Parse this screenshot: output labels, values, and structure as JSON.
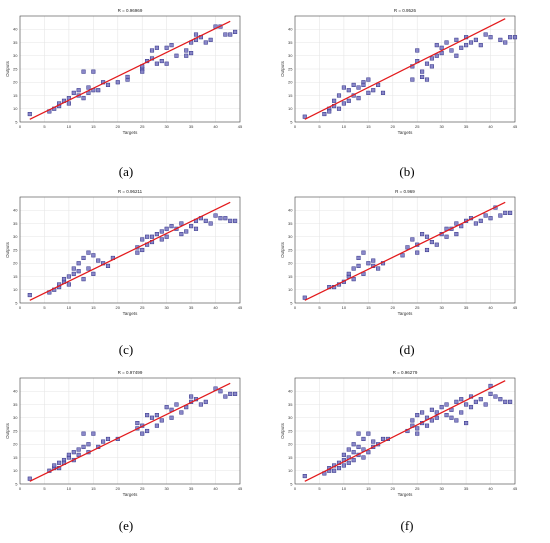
{
  "figure": {
    "captions": [
      "(a)",
      "(b)",
      "(c)",
      "(d)",
      "(e)",
      "(f)"
    ]
  },
  "colors": {
    "fit_line": "#e31a1c",
    "marker_fill": "#7c7ac2",
    "marker_edge": "#2e2e86",
    "grid": "#e6e6e6",
    "axis": "#444444"
  },
  "chart_data": [
    {
      "type": "scatter",
      "title": "R = 0.96969",
      "xlabel": "Targets",
      "ylabel": "Outputs",
      "xlim": [
        0,
        45
      ],
      "ylim": [
        5,
        45
      ],
      "xticks": [
        0,
        5,
        10,
        15,
        20,
        25,
        30,
        35,
        40,
        45
      ],
      "yticks": [
        5,
        10,
        15,
        20,
        25,
        30,
        35,
        40
      ],
      "grid": true,
      "fit_line": {
        "x": [
          2,
          43
        ],
        "y": [
          6,
          43
        ]
      },
      "points": [
        [
          2,
          8
        ],
        [
          6,
          9
        ],
        [
          7,
          10
        ],
        [
          8,
          11
        ],
        [
          8,
          12
        ],
        [
          9,
          13
        ],
        [
          10,
          14
        ],
        [
          10,
          12
        ],
        [
          11,
          16
        ],
        [
          12,
          15
        ],
        [
          12,
          17
        ],
        [
          13,
          14
        ],
        [
          13,
          24
        ],
        [
          14,
          18
        ],
        [
          14,
          16
        ],
        [
          15,
          24
        ],
        [
          15,
          17
        ],
        [
          16,
          17
        ],
        [
          17,
          20
        ],
        [
          18,
          19
        ],
        [
          20,
          20
        ],
        [
          22,
          21
        ],
        [
          22,
          22
        ],
        [
          25,
          25
        ],
        [
          25,
          26
        ],
        [
          25,
          24
        ],
        [
          26,
          28
        ],
        [
          27,
          29
        ],
        [
          27,
          32
        ],
        [
          28,
          33
        ],
        [
          28,
          27
        ],
        [
          29,
          28
        ],
        [
          30,
          27
        ],
        [
          30,
          33
        ],
        [
          31,
          34
        ],
        [
          32,
          30
        ],
        [
          34,
          30
        ],
        [
          34,
          32
        ],
        [
          35,
          31
        ],
        [
          35,
          35
        ],
        [
          36,
          36
        ],
        [
          36,
          38
        ],
        [
          37,
          37
        ],
        [
          38,
          35
        ],
        [
          39,
          36
        ],
        [
          40,
          41
        ],
        [
          41,
          41
        ],
        [
          42,
          38
        ],
        [
          43,
          38
        ],
        [
          44,
          39
        ]
      ]
    },
    {
      "type": "scatter",
      "title": "R = 0.9526",
      "xlabel": "Targets",
      "ylabel": "Outputs",
      "xlim": [
        0,
        45
      ],
      "ylim": [
        5,
        45
      ],
      "xticks": [
        0,
        5,
        10,
        15,
        20,
        25,
        30,
        35,
        40,
        45
      ],
      "yticks": [
        5,
        10,
        15,
        20,
        25,
        30,
        35,
        40
      ],
      "grid": true,
      "fit_line": {
        "x": [
          2,
          43
        ],
        "y": [
          6,
          44
        ]
      },
      "points": [
        [
          2,
          7
        ],
        [
          6,
          8
        ],
        [
          7,
          10
        ],
        [
          7,
          9
        ],
        [
          8,
          11
        ],
        [
          8,
          13
        ],
        [
          9,
          10
        ],
        [
          9,
          15
        ],
        [
          10,
          12
        ],
        [
          10,
          18
        ],
        [
          11,
          13
        ],
        [
          11,
          17
        ],
        [
          12,
          19
        ],
        [
          12,
          15
        ],
        [
          13,
          14
        ],
        [
          13,
          18
        ],
        [
          14,
          20
        ],
        [
          14,
          19
        ],
        [
          15,
          16
        ],
        [
          15,
          21
        ],
        [
          16,
          17
        ],
        [
          17,
          19
        ],
        [
          18,
          16
        ],
        [
          24,
          21
        ],
        [
          24,
          26
        ],
        [
          25,
          28
        ],
        [
          25,
          32
        ],
        [
          26,
          24
        ],
        [
          26,
          22
        ],
        [
          27,
          21
        ],
        [
          27,
          27
        ],
        [
          28,
          29
        ],
        [
          28,
          26
        ],
        [
          29,
          30
        ],
        [
          29,
          34
        ],
        [
          30,
          31
        ],
        [
          30,
          33
        ],
        [
          31,
          35
        ],
        [
          32,
          32
        ],
        [
          33,
          30
        ],
        [
          33,
          36
        ],
        [
          34,
          33
        ],
        [
          35,
          34
        ],
        [
          35,
          37
        ],
        [
          36,
          35
        ],
        [
          37,
          36
        ],
        [
          38,
          34
        ],
        [
          39,
          38
        ],
        [
          40,
          37
        ],
        [
          42,
          36
        ],
        [
          43,
          35
        ],
        [
          44,
          37
        ],
        [
          45,
          37
        ]
      ]
    },
    {
      "type": "scatter",
      "title": "R = 0.96211",
      "xlabel": "Targets",
      "ylabel": "Outputs",
      "xlim": [
        0,
        45
      ],
      "ylim": [
        5,
        45
      ],
      "xticks": [
        0,
        5,
        10,
        15,
        20,
        25,
        30,
        35,
        40,
        45
      ],
      "yticks": [
        5,
        10,
        15,
        20,
        25,
        30,
        35,
        40
      ],
      "grid": true,
      "fit_line": {
        "x": [
          2,
          43
        ],
        "y": [
          6,
          43
        ]
      },
      "points": [
        [
          2,
          8
        ],
        [
          6,
          9
        ],
        [
          7,
          10
        ],
        [
          8,
          11
        ],
        [
          8,
          12
        ],
        [
          9,
          13
        ],
        [
          9,
          14
        ],
        [
          10,
          15
        ],
        [
          10,
          12
        ],
        [
          11,
          16
        ],
        [
          11,
          18
        ],
        [
          12,
          17
        ],
        [
          12,
          20
        ],
        [
          13,
          14
        ],
        [
          13,
          22
        ],
        [
          14,
          24
        ],
        [
          14,
          18
        ],
        [
          15,
          23
        ],
        [
          15,
          16
        ],
        [
          16,
          21
        ],
        [
          17,
          20
        ],
        [
          18,
          19
        ],
        [
          19,
          22
        ],
        [
          24,
          24
        ],
        [
          24,
          26
        ],
        [
          25,
          25
        ],
        [
          25,
          29
        ],
        [
          26,
          30
        ],
        [
          26,
          27
        ],
        [
          27,
          28
        ],
        [
          27,
          30
        ],
        [
          28,
          31
        ],
        [
          29,
          32
        ],
        [
          29,
          29
        ],
        [
          30,
          30
        ],
        [
          30,
          33
        ],
        [
          31,
          34
        ],
        [
          32,
          33
        ],
        [
          33,
          31
        ],
        [
          33,
          35
        ],
        [
          34,
          32
        ],
        [
          35,
          34
        ],
        [
          36,
          36
        ],
        [
          36,
          33
        ],
        [
          37,
          37
        ],
        [
          38,
          36
        ],
        [
          39,
          35
        ],
        [
          40,
          38
        ],
        [
          41,
          37
        ],
        [
          42,
          37
        ],
        [
          43,
          36
        ],
        [
          44,
          36
        ]
      ]
    },
    {
      "type": "scatter",
      "title": "R = 0.969",
      "xlabel": "Targets",
      "ylabel": "Outputs",
      "xlim": [
        0,
        45
      ],
      "ylim": [
        5,
        45
      ],
      "xticks": [
        0,
        5,
        10,
        15,
        20,
        25,
        30,
        35,
        40,
        45
      ],
      "yticks": [
        5,
        10,
        15,
        20,
        25,
        30,
        35,
        40
      ],
      "grid": true,
      "fit_line": {
        "x": [
          2,
          43
        ],
        "y": [
          6,
          43
        ]
      },
      "points": [
        [
          2,
          7
        ],
        [
          7,
          11
        ],
        [
          8,
          11
        ],
        [
          9,
          12
        ],
        [
          10,
          13
        ],
        [
          11,
          15
        ],
        [
          11,
          16
        ],
        [
          12,
          14
        ],
        [
          12,
          18
        ],
        [
          13,
          19
        ],
        [
          13,
          22
        ],
        [
          14,
          16
        ],
        [
          14,
          24
        ],
        [
          15,
          20
        ],
        [
          16,
          19
        ],
        [
          16,
          21
        ],
        [
          17,
          18
        ],
        [
          18,
          20
        ],
        [
          22,
          23
        ],
        [
          23,
          26
        ],
        [
          24,
          29
        ],
        [
          25,
          24
        ],
        [
          25,
          27
        ],
        [
          26,
          31
        ],
        [
          27,
          30
        ],
        [
          27,
          25
        ],
        [
          28,
          28
        ],
        [
          29,
          27
        ],
        [
          30,
          31
        ],
        [
          31,
          30
        ],
        [
          31,
          33
        ],
        [
          32,
          33
        ],
        [
          33,
          31
        ],
        [
          33,
          35
        ],
        [
          34,
          34
        ],
        [
          35,
          36
        ],
        [
          36,
          37
        ],
        [
          37,
          35
        ],
        [
          38,
          36
        ],
        [
          39,
          38
        ],
        [
          40,
          37
        ],
        [
          41,
          41
        ],
        [
          42,
          38
        ],
        [
          43,
          39
        ],
        [
          44,
          39
        ]
      ]
    },
    {
      "type": "scatter",
      "title": "R = 0.97499",
      "xlabel": "Targets",
      "ylabel": "Outputs",
      "xlim": [
        0,
        45
      ],
      "ylim": [
        5,
        45
      ],
      "xticks": [
        0,
        5,
        10,
        15,
        20,
        25,
        30,
        35,
        40,
        45
      ],
      "yticks": [
        5,
        10,
        15,
        20,
        25,
        30,
        35,
        40
      ],
      "grid": true,
      "fit_line": {
        "x": [
          2,
          43
        ],
        "y": [
          6,
          43
        ]
      },
      "points": [
        [
          2,
          7
        ],
        [
          6,
          10
        ],
        [
          7,
          11
        ],
        [
          7,
          12
        ],
        [
          8,
          13
        ],
        [
          8,
          11
        ],
        [
          9,
          14
        ],
        [
          9,
          13
        ],
        [
          10,
          15
        ],
        [
          10,
          16
        ],
        [
          11,
          14
        ],
        [
          11,
          17
        ],
        [
          12,
          16
        ],
        [
          12,
          18
        ],
        [
          13,
          19
        ],
        [
          13,
          24
        ],
        [
          14,
          20
        ],
        [
          14,
          17
        ],
        [
          15,
          24
        ],
        [
          16,
          19
        ],
        [
          17,
          21
        ],
        [
          18,
          22
        ],
        [
          20,
          22
        ],
        [
          24,
          26
        ],
        [
          24,
          28
        ],
        [
          25,
          27
        ],
        [
          25,
          24
        ],
        [
          26,
          25
        ],
        [
          26,
          31
        ],
        [
          27,
          30
        ],
        [
          28,
          31
        ],
        [
          28,
          27
        ],
        [
          29,
          29
        ],
        [
          30,
          34
        ],
        [
          31,
          33
        ],
        [
          31,
          30
        ],
        [
          32,
          35
        ],
        [
          33,
          32
        ],
        [
          34,
          34
        ],
        [
          35,
          36
        ],
        [
          35,
          38
        ],
        [
          36,
          37
        ],
        [
          37,
          35
        ],
        [
          38,
          36
        ],
        [
          40,
          41
        ],
        [
          41,
          40
        ],
        [
          42,
          38
        ],
        [
          43,
          39
        ],
        [
          44,
          39
        ]
      ]
    },
    {
      "type": "scatter",
      "title": "R = 0.96279",
      "xlabel": "Targets",
      "ylabel": "Outputs",
      "xlim": [
        0,
        45
      ],
      "ylim": [
        5,
        45
      ],
      "xticks": [
        0,
        5,
        10,
        15,
        20,
        25,
        30,
        35,
        40,
        45
      ],
      "yticks": [
        5,
        10,
        15,
        20,
        25,
        30,
        35,
        40
      ],
      "grid": true,
      "fit_line": {
        "x": [
          2,
          43
        ],
        "y": [
          6,
          44
        ]
      },
      "points": [
        [
          2,
          8
        ],
        [
          6,
          9
        ],
        [
          7,
          10
        ],
        [
          7,
          11
        ],
        [
          8,
          10
        ],
        [
          8,
          12
        ],
        [
          9,
          11
        ],
        [
          9,
          13
        ],
        [
          10,
          12
        ],
        [
          10,
          14
        ],
        [
          10,
          16
        ],
        [
          11,
          13
        ],
        [
          11,
          15
        ],
        [
          11,
          18
        ],
        [
          12,
          14
        ],
        [
          12,
          17
        ],
        [
          12,
          20
        ],
        [
          13,
          16
        ],
        [
          13,
          19
        ],
        [
          13,
          24
        ],
        [
          14,
          15
        ],
        [
          14,
          18
        ],
        [
          14,
          22
        ],
        [
          15,
          24
        ],
        [
          15,
          17
        ],
        [
          16,
          19
        ],
        [
          16,
          21
        ],
        [
          17,
          20
        ],
        [
          18,
          22
        ],
        [
          19,
          22
        ],
        [
          23,
          25
        ],
        [
          24,
          27
        ],
        [
          24,
          29
        ],
        [
          25,
          31
        ],
        [
          25,
          26
        ],
        [
          25,
          24
        ],
        [
          26,
          28
        ],
        [
          26,
          32
        ],
        [
          27,
          30
        ],
        [
          27,
          27
        ],
        [
          28,
          29
        ],
        [
          28,
          33
        ],
        [
          29,
          30
        ],
        [
          29,
          32
        ],
        [
          30,
          34
        ],
        [
          31,
          31
        ],
        [
          31,
          35
        ],
        [
          32,
          33
        ],
        [
          32,
          30
        ],
        [
          33,
          36
        ],
        [
          33,
          29
        ],
        [
          34,
          32
        ],
        [
          34,
          37
        ],
        [
          35,
          35
        ],
        [
          35,
          28
        ],
        [
          36,
          34
        ],
        [
          36,
          38
        ],
        [
          37,
          36
        ],
        [
          38,
          37
        ],
        [
          39,
          35
        ],
        [
          40,
          39
        ],
        [
          40,
          42
        ],
        [
          41,
          38
        ],
        [
          42,
          37
        ],
        [
          43,
          36
        ],
        [
          44,
          36
        ]
      ]
    }
  ]
}
